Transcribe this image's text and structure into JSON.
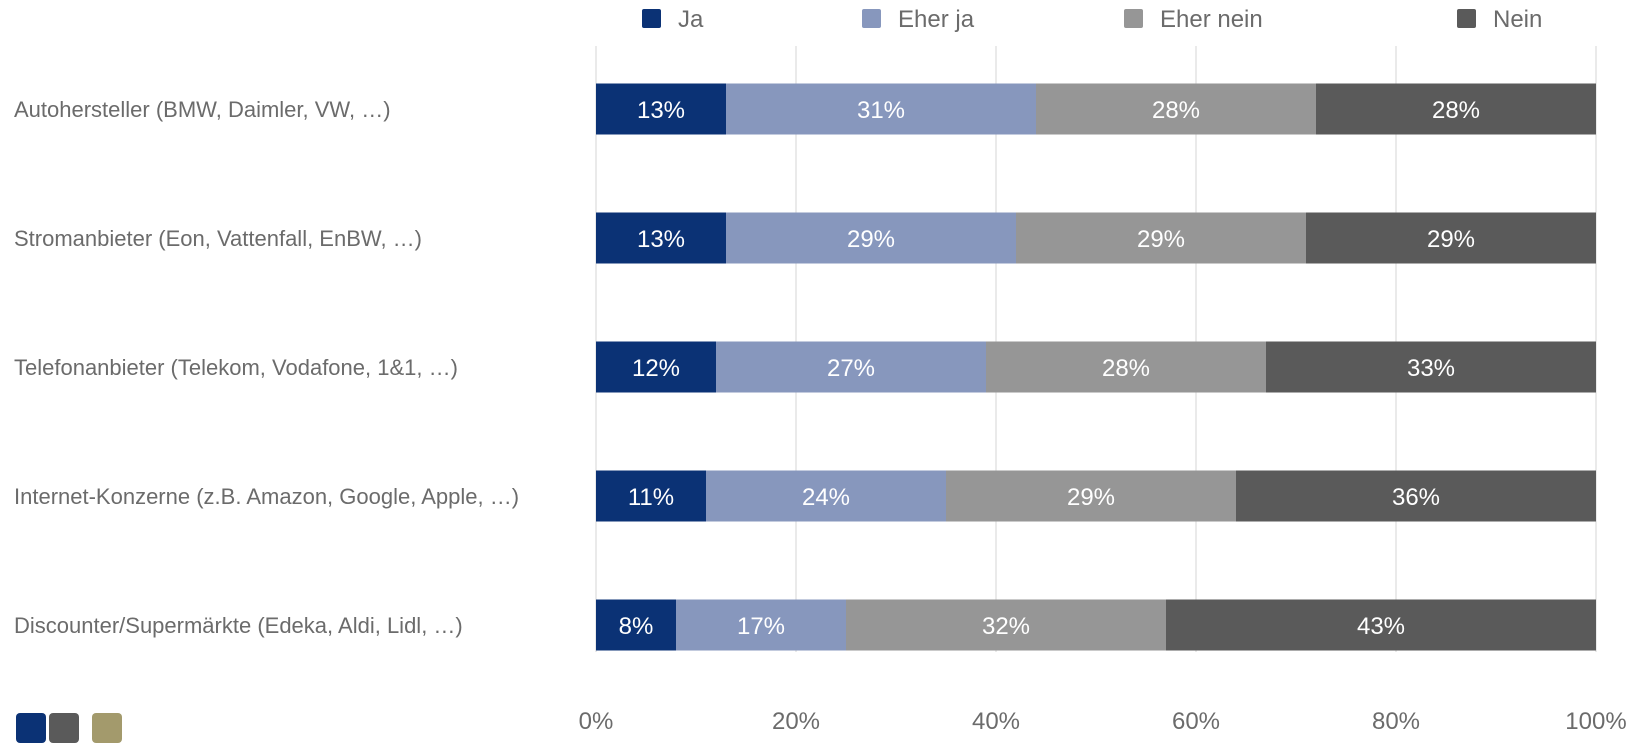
{
  "chart_data": {
    "type": "bar",
    "orientation": "horizontal",
    "stacked": true,
    "categories": [
      "Autohersteller (BMW, Daimler, VW, …)",
      "Stromanbieter (Eon, Vattenfall, EnBW, …)",
      "Telefonanbieter (Telekom, Vodafone, 1&1, …)",
      "Internet-Konzerne (z.B. Amazon, Google, Apple, …)",
      "Discounter/Supermärkte (Edeka, Aldi, Lidl, …)"
    ],
    "series": [
      {
        "name": "Ja",
        "color": "#0b3275",
        "text_color": "#ffffff",
        "values": [
          13,
          13,
          12,
          11,
          8
        ],
        "labels": [
          "13%",
          "13%",
          "12%",
          "11%",
          "8%"
        ]
      },
      {
        "name": "Eher ja",
        "color": "#8797bd",
        "text_color": "#ffffff",
        "values": [
          31,
          29,
          27,
          24,
          17
        ],
        "labels": [
          "31%",
          "29%",
          "27%",
          "24%",
          "17%"
        ]
      },
      {
        "name": "Eher nein",
        "color": "#969696",
        "text_color": "#ffffff",
        "values": [
          28,
          29,
          28,
          29,
          32
        ],
        "labels": [
          "28%",
          "29%",
          "28%",
          "29%",
          "32%"
        ]
      },
      {
        "name": "Nein",
        "color": "#5a5a5a",
        "text_color": "#ffffff",
        "values": [
          28,
          29,
          33,
          36,
          43
        ],
        "labels": [
          "28%",
          "29%",
          "33%",
          "36%",
          "43%"
        ]
      }
    ],
    "xlim": [
      0,
      100
    ],
    "xticks": [
      0,
      20,
      40,
      60,
      80,
      100
    ],
    "xtick_labels": [
      "0%",
      "20%",
      "40%",
      "60%",
      "80%",
      "100%"
    ],
    "grid": true,
    "legend_position": "top"
  },
  "brand_colors": [
    "#0b3275",
    "#5a5a5a",
    "#a39a6c"
  ],
  "colors": {
    "text": "#6b6b6b",
    "grid": "#e3e3e3"
  }
}
